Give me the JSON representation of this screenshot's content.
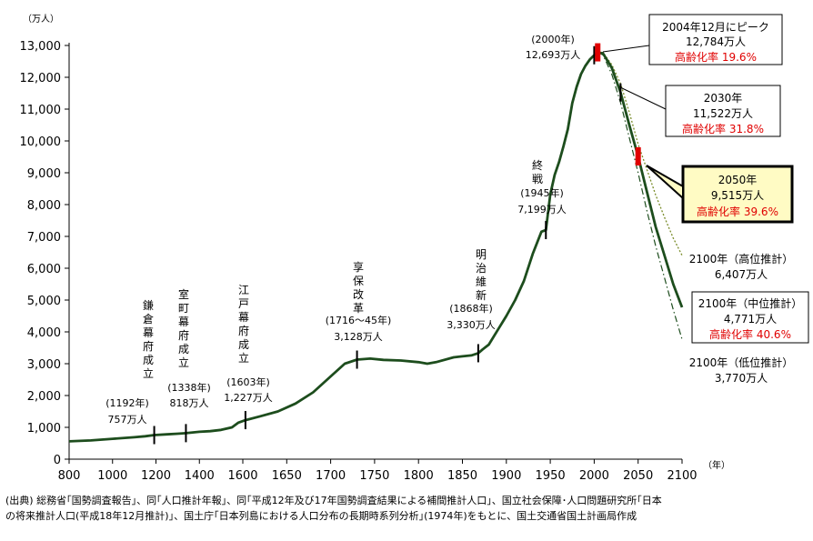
{
  "chart_data": {
    "type": "line",
    "ylabel": "（万人）",
    "xlabel": "（年）",
    "xlim": [
      800,
      2100
    ],
    "ylim": [
      0,
      13000
    ],
    "x_ticks": [
      "800",
      "1000",
      "1200",
      "1400",
      "1600",
      "1650",
      "1700",
      "1750",
      "1800",
      "1850",
      "1900",
      "1950",
      "2000",
      "2050",
      "2100"
    ],
    "y_ticks": [
      "0",
      "1,000",
      "2,000",
      "3,000",
      "4,000",
      "5,000",
      "6,000",
      "7,000",
      "8,000",
      "9,000",
      "10,000",
      "11,000",
      "12,000",
      "13,000"
    ],
    "series": [
      {
        "name": "",
        "x": [
          800,
          900,
          1000,
          1100,
          1150,
          1192,
          1250,
          1300,
          1338,
          1400,
          1450,
          1500,
          1550,
          1580,
          1603,
          1620,
          1640,
          1660,
          1680,
          1700,
          1716,
          1730,
          1745,
          1760,
          1780,
          1800,
          1810,
          1820,
          1840,
          1850,
          1860,
          1868,
          1873,
          1880,
          1890,
          1900,
          1910,
          1920,
          1930,
          1940,
          1945,
          1950,
          1955,
          1960,
          1965,
          1970,
          1975,
          1980,
          1985,
          1990,
          1995,
          2000,
          2004,
          2010,
          2020,
          2030,
          2040,
          2050,
          2060,
          2070,
          2080,
          2090,
          2100
        ],
        "y": [
          560,
          590,
          640,
          690,
          720,
          757,
          780,
          800,
          818,
          860,
          880,
          920,
          1000,
          1150,
          1227,
          1350,
          1500,
          1750,
          2100,
          2600,
          3000,
          3128,
          3160,
          3120,
          3100,
          3050,
          3000,
          3050,
          3200,
          3230,
          3260,
          3330,
          3450,
          3600,
          4050,
          4500,
          5000,
          5600,
          6450,
          7150,
          7199,
          8320,
          8930,
          9340,
          9830,
          10370,
          11190,
          11700,
          12100,
          12360,
          12560,
          12693,
          12784,
          12750,
          12300,
          11522,
          10500,
          9515,
          8400,
          7300,
          6400,
          5500,
          4771
        ]
      },
      {
        "name": "",
        "x": [
          2004,
          2010,
          2020,
          2030,
          2040,
          2050,
          2060,
          2070,
          2080,
          2090,
          2100
        ],
        "y": [
          12784,
          12780,
          12400,
          11800,
          10900,
          9900,
          9100,
          8300,
          7600,
          6950,
          6407
        ]
      },
      {
        "name": "",
        "x": [
          2004,
          2010,
          2020,
          2030,
          2040,
          2050,
          2060,
          2070,
          2080,
          2090,
          2100
        ],
        "y": [
          12784,
          12700,
          12100,
          11200,
          10100,
          9000,
          7800,
          6700,
          5700,
          4700,
          3770
        ]
      }
    ],
    "era_labels": [
      {
        "text": "鎌倉幕府成立",
        "year": "(1192年)",
        "pop": "757万人"
      },
      {
        "text": "室町幕府成立",
        "year": "(1338年)",
        "pop": "818万人"
      },
      {
        "text": "江戸幕府成立",
        "year": "(1603年)",
        "pop": "1,227万人"
      },
      {
        "text": "享保改革",
        "year": "(1716～45年)",
        "pop": "3,128万人"
      },
      {
        "text": "明治維新",
        "year": "(1868年)",
        "pop": "3,330万人"
      },
      {
        "text": "終戦",
        "year": "(1945年)",
        "pop": "7,199万人"
      }
    ],
    "annotations": {
      "y2000": {
        "year": "(2000年)",
        "pop": "12,693万人"
      },
      "peak": {
        "line1": "2004年12月にピーク",
        "line2": "12,784万人",
        "line3": "高齢化率 19.6%"
      },
      "y2030": {
        "line1": "2030年",
        "line2": "11,522万人",
        "line3": "高齢化率 31.8%"
      },
      "y2050": {
        "line1": "2050年",
        "line2": "9,515万人",
        "line3": "高齢化率 39.6%"
      },
      "high": {
        "line1": "2100年（高位推計）",
        "line2": "6,407万人"
      },
      "mid": {
        "line1": "2100年（中位推計）",
        "line2": "4,771万人",
        "line3": "高齢化率 40.6%"
      },
      "low": {
        "line1": "2100年（低位推計）",
        "line2": "3,770万人"
      }
    },
    "colors": {
      "main_line": "#1d4d1d",
      "high_line": "#7a8c2a",
      "low_line": "#1d4d1d",
      "marker": "#e00000",
      "highlight_fill": "#fffbc4"
    }
  },
  "source_note": "(出典) 総務省｢国勢調査報告｣、同｢人口推計年報｣、同｢平成12年及び17年国勢調査結果による補間推計人口｣、国立社会保障･人口問題研究所｢日本\nの将来推計人口(平成18年12月推計)｣、国土庁｢日本列島における人口分布の長期時系列分析｣(1974年)をもとに、国土交通省国土計画局作成"
}
